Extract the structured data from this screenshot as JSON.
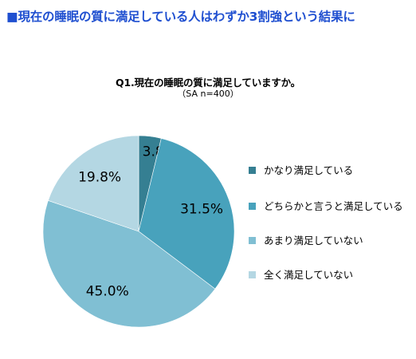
{
  "headline": "■現在の睡眠の質に満足している人はわずか3割強という結果に",
  "chart_data": {
    "type": "pie",
    "title": "Q1.現在の睡眠の質に満足していますか。",
    "subtitle": "（SA n=400）",
    "categories": [
      "かなり満足している",
      "どちらかと言うと満足している",
      "あまり満足していない",
      "全く満足していない"
    ],
    "values": [
      3.8,
      31.5,
      45.0,
      19.8
    ],
    "labels": [
      "3.8%",
      "31.5%",
      "45.0%",
      "19.8%"
    ],
    "colors": [
      "#357f92",
      "#48a2bc",
      "#80bfd3",
      "#b4d7e3"
    ],
    "legend_position": "right"
  }
}
